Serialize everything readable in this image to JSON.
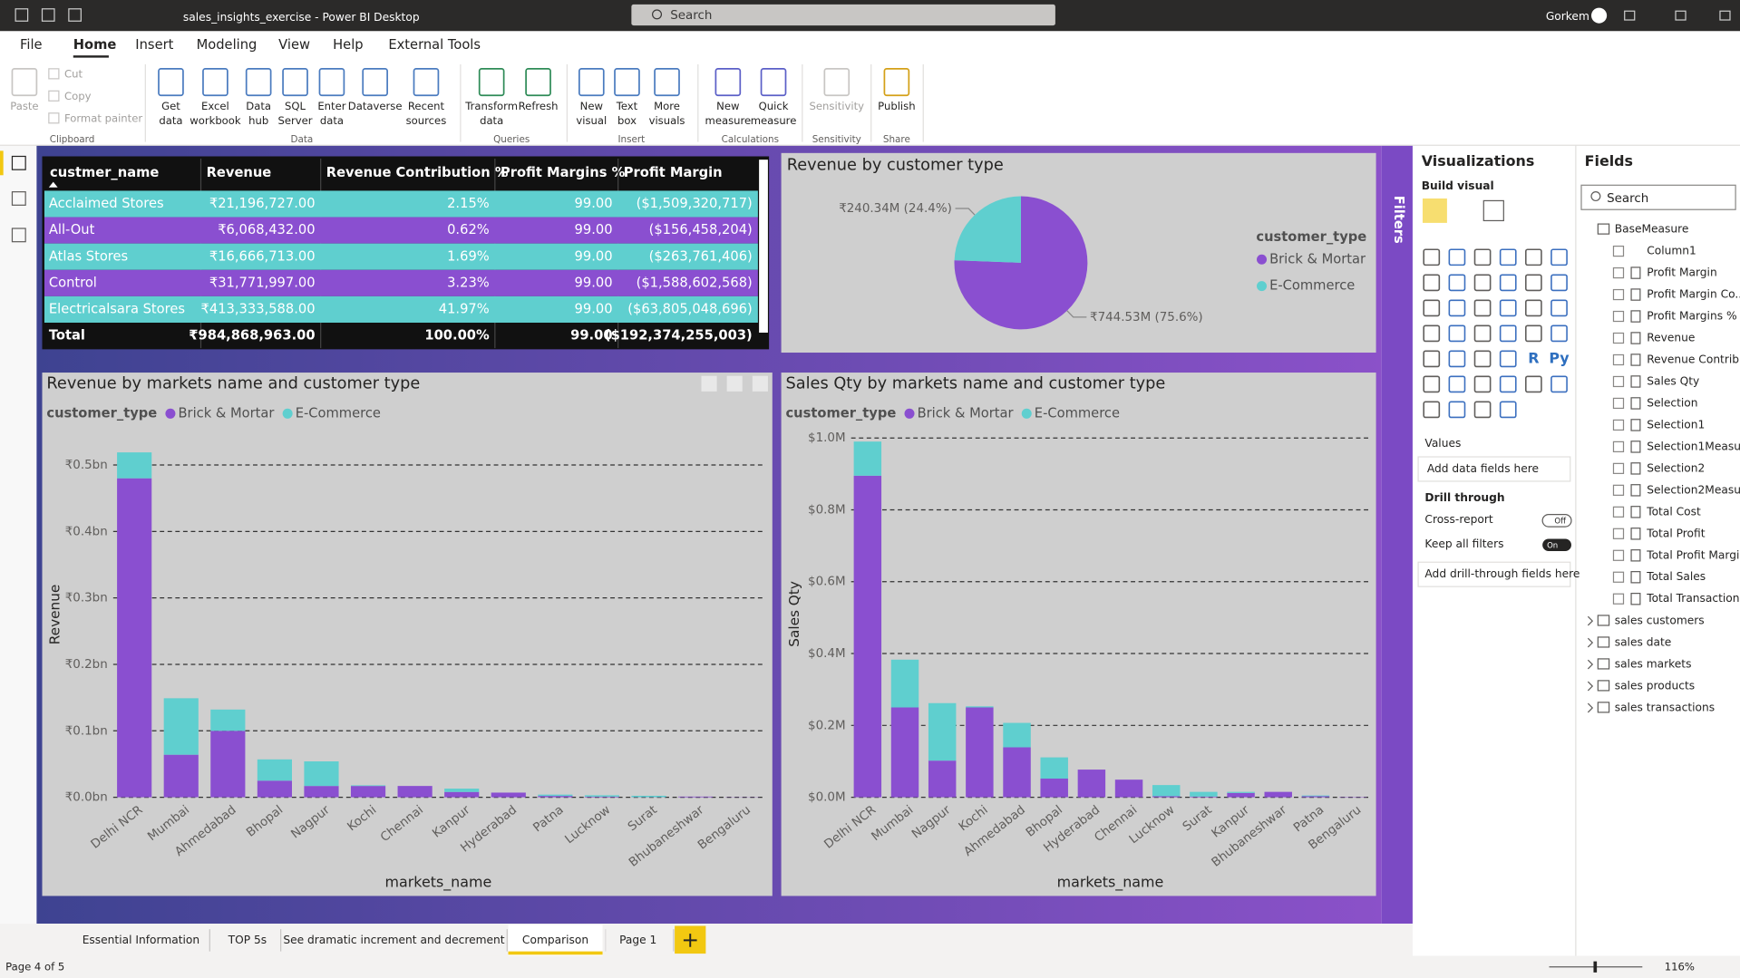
{
  "window": {
    "title": "sales_insights_exercise - Power BI Desktop",
    "search": "Search",
    "user": "Gorkem"
  },
  "menu": {
    "items": [
      "File",
      "Home",
      "Insert",
      "Modeling",
      "View",
      "Help",
      "External Tools"
    ],
    "active": 1
  },
  "ribbon": {
    "groups": [
      {
        "label": "Clipboard",
        "buttons": [
          [
            "Paste"
          ],
          [
            "Cut"
          ],
          [
            "Copy"
          ],
          [
            "Format painter"
          ]
        ]
      },
      {
        "label": "Data",
        "buttons": [
          [
            "Get",
            "data"
          ],
          [
            "Excel",
            "workbook"
          ],
          [
            "Data",
            "hub"
          ],
          [
            "SQL",
            "Server"
          ],
          [
            "Enter",
            "data"
          ],
          [
            "Dataverse"
          ],
          [
            "Recent",
            "sources"
          ]
        ]
      },
      {
        "label": "Queries",
        "buttons": [
          [
            "Transform",
            "data"
          ],
          [
            "Refresh"
          ]
        ]
      },
      {
        "label": "Insert",
        "buttons": [
          [
            "New",
            "visual"
          ],
          [
            "Text",
            "box"
          ],
          [
            "More",
            "visuals"
          ]
        ]
      },
      {
        "label": "Calculations",
        "buttons": [
          [
            "New",
            "measure"
          ],
          [
            "Quick",
            "measure"
          ]
        ]
      },
      {
        "label": "Sensitivity",
        "buttons": [
          [
            "Sensitivity"
          ]
        ]
      },
      {
        "label": "Share",
        "buttons": [
          [
            "Publish"
          ]
        ]
      }
    ]
  },
  "table": {
    "columns": [
      "custmer_name",
      "Revenue",
      "Revenue Contribution %",
      "Profit Margins %",
      "Profit Margin"
    ],
    "rows": [
      [
        "Acclaimed Stores",
        "₹21,196,727.00",
        "2.15%",
        "99.00",
        "($1,509,320,717)"
      ],
      [
        "All-Out",
        "₹6,068,432.00",
        "0.62%",
        "99.00",
        "($156,458,204)"
      ],
      [
        "Atlas Stores",
        "₹16,666,713.00",
        "1.69%",
        "99.00",
        "($263,761,406)"
      ],
      [
        "Control",
        "₹31,771,997.00",
        "3.23%",
        "99.00",
        "($1,588,602,568)"
      ],
      [
        "Electricalsara Stores",
        "₹413,333,588.00",
        "41.97%",
        "99.00",
        "($63,805,048,696)"
      ]
    ],
    "total": [
      "Total",
      "₹984,868,963.00",
      "100.00%",
      "99.00",
      "($192,374,255,003)"
    ]
  },
  "chart_data": [
    {
      "type": "pie",
      "title": "Revenue by customer type",
      "legend_title": "customer_type",
      "categories": [
        "Brick & Mortar",
        "E-Commerce"
      ],
      "values": [
        744530000,
        240340000
      ],
      "value_labels": [
        "₹744.53M (75.6%)",
        "₹240.34M (24.4%)"
      ],
      "colors": [
        "#8a4fd0",
        "#5fcfcf"
      ]
    },
    {
      "type": "bar",
      "stacked": true,
      "title": "Revenue by markets name and customer type",
      "legend_title": "customer_type",
      "x_label": "markets_name",
      "y_label": "Revenue",
      "categories": [
        "Delhi NCR",
        "Mumbai",
        "Ahmedabad",
        "Bhopal",
        "Nagpur",
        "Kochi",
        "Chennai",
        "Kanpur",
        "Hyderabad",
        "Patna",
        "Lucknow",
        "Surat",
        "Bhubaneshwar",
        "Bengaluru"
      ],
      "series": [
        {
          "name": "Brick & Mortar",
          "color": "#8a4fd0",
          "values": [
            480000000,
            64000000,
            100000000,
            25000000,
            17000000,
            17000000,
            17000000,
            8000000,
            7000000,
            2000000,
            1000000,
            200000,
            1000000,
            300000
          ]
        },
        {
          "name": "E-Commerce",
          "color": "#5fcfcf",
          "values": [
            39000000,
            85000000,
            32000000,
            32000000,
            37000000,
            1000000,
            0,
            5000000,
            0,
            2000000,
            2000000,
            2000000,
            0,
            0
          ]
        }
      ],
      "ylim": [
        0,
        550000000
      ],
      "yticks": [
        {
          "value": 0,
          "label": "₹0.0bn"
        },
        {
          "value": 100000000,
          "label": "₹0.1bn"
        },
        {
          "value": 200000000,
          "label": "₹0.2bn"
        },
        {
          "value": 300000000,
          "label": "₹0.3bn"
        },
        {
          "value": 400000000,
          "label": "₹0.4bn"
        },
        {
          "value": 500000000,
          "label": "₹0.5bn"
        }
      ],
      "grid": true
    },
    {
      "type": "bar",
      "stacked": true,
      "title": "Sales Qty by markets name and customer type",
      "legend_title": "customer_type",
      "x_label": "markets_name",
      "y_label": "Sales Qty",
      "categories": [
        "Delhi NCR",
        "Mumbai",
        "Nagpur",
        "Kochi",
        "Ahmedabad",
        "Bhopal",
        "Hyderabad",
        "Chennai",
        "Lucknow",
        "Surat",
        "Kanpur",
        "Bhubaneshwar",
        "Patna",
        "Bengaluru"
      ],
      "series": [
        {
          "name": "Brick & Mortar",
          "color": "#8a4fd0",
          "values": [
            895000,
            250000,
            102000,
            250000,
            139000,
            52000,
            77000,
            49000,
            3000,
            2000,
            12000,
            15000,
            3000,
            1000
          ]
        },
        {
          "name": "E-Commerce",
          "color": "#5fcfcf",
          "values": [
            95000,
            133000,
            160000,
            3000,
            68000,
            59000,
            0,
            0,
            31000,
            13000,
            3000,
            0,
            2000,
            0
          ]
        }
      ],
      "ylim": [
        0,
        1020000
      ],
      "yticks": [
        {
          "value": 0,
          "label": "$0.0M"
        },
        {
          "value": 200000,
          "label": "$0.2M"
        },
        {
          "value": 400000,
          "label": "$0.4M"
        },
        {
          "value": 600000,
          "label": "$0.6M"
        },
        {
          "value": 800000,
          "label": "$0.8M"
        },
        {
          "value": 1000000,
          "label": "$1.0M"
        }
      ],
      "grid": true
    }
  ],
  "filters": "Filters",
  "visualizations": {
    "title": "Visualizations",
    "tab": "Build visual",
    "icon_labels": [
      "R",
      "Py"
    ],
    "values_label": "Values",
    "values_placeholder": "Add data fields here",
    "drill_through": "Drill through",
    "cross_report": "Cross-report",
    "cross_report_state": "Off",
    "keep_filters": "Keep all filters",
    "keep_filters_state": "On",
    "drill_placeholder": "Add drill-through fields here"
  },
  "fields": {
    "title": "Fields",
    "search": "Search",
    "table": "BaseMeasure",
    "measures": [
      "Column1",
      "Profit Margin",
      "Profit Margin Co...",
      "Profit Margins %",
      "Revenue",
      "Revenue Contrib...",
      "Sales Qty",
      "Selection",
      "Selection1",
      "Selection1Measu...",
      "Selection2",
      "Selection2Measu...",
      "Total Cost",
      "Total Profit",
      "Total Profit Margin",
      "Total Sales",
      "Total Transaction"
    ],
    "tables": [
      "sales customers",
      "sales date",
      "sales markets",
      "sales products",
      "sales transactions"
    ]
  },
  "tabs": {
    "items": [
      "Essential Information",
      "TOP 5s",
      "See dramatic increment and decrement",
      "Comparison",
      "Page 1"
    ],
    "active": 3
  },
  "status": {
    "page": "Page 4 of 5",
    "zoom": "116%"
  }
}
